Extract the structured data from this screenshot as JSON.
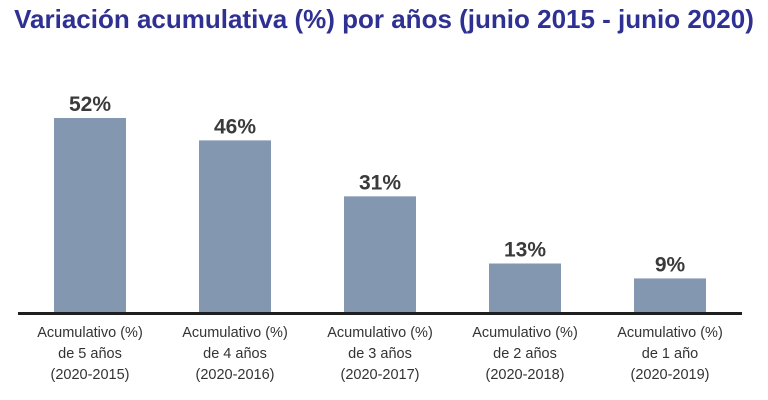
{
  "chart_data": {
    "type": "bar",
    "title": "Variación acumulativa (%) por años (junio 2015 - junio 2020)",
    "xlabel": "",
    "ylabel": "",
    "grid": false,
    "legend": "none",
    "categories": [
      [
        "Acumulativo (%)",
        "de 5 años",
        "(2020-2015)"
      ],
      [
        "Acumulativo (%)",
        "de  4 años",
        "(2020-2016)"
      ],
      [
        "Acumulativo (%)",
        "de 3 años",
        "(2020-2017)"
      ],
      [
        "Acumulativo (%)",
        "de 2 años",
        "(2020-2018)"
      ],
      [
        "Acumulativo (%)",
        "de 1 año",
        "(2020-2019)"
      ]
    ],
    "values": [
      52,
      46,
      31,
      13,
      9
    ],
    "data_labels": [
      "52%",
      "46%",
      "31%",
      "13%",
      "9%"
    ],
    "ylim": [
      0,
      60
    ],
    "colors": {
      "bar": "#8497b0",
      "title": "#2e3192",
      "axis": "#1f1f1f",
      "label": "#3a3a3a"
    }
  }
}
